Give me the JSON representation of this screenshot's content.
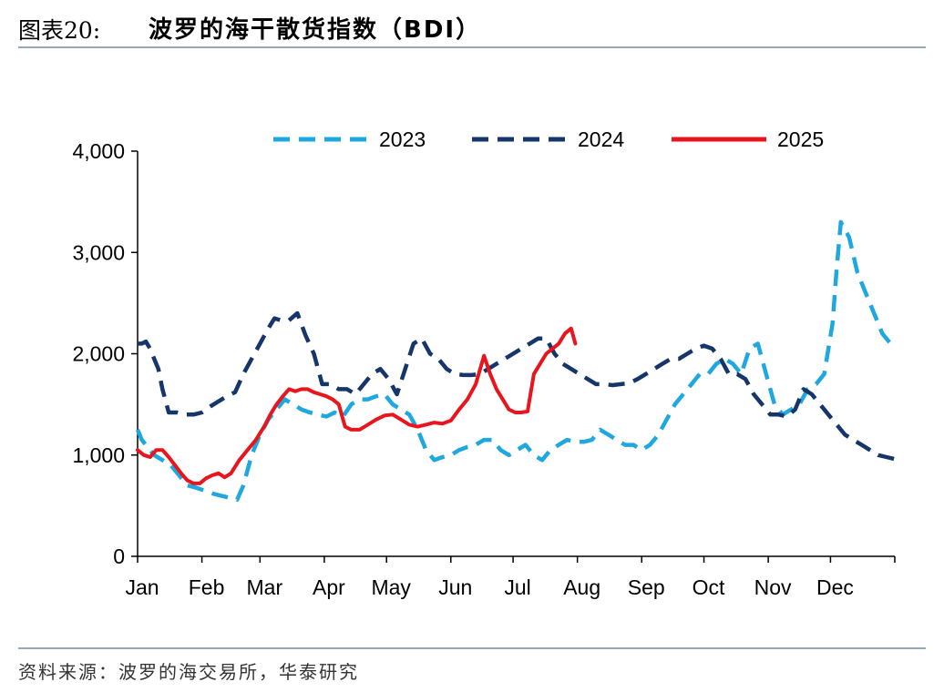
{
  "header": {
    "prefix": "图表20:",
    "title": "波罗的海干散货指数（BDI）"
  },
  "footer": {
    "source": "资料来源：波罗的海交易所，华泰研究"
  },
  "chart_data": {
    "type": "line",
    "title": "波罗的海干散货指数（BDI）",
    "xlabel": "",
    "ylabel": "",
    "x_unit": "day of year (1 = Jan 1)",
    "xlim": [
      1,
      366
    ],
    "ylim": [
      0,
      4000
    ],
    "yticks": [
      0,
      1000,
      2000,
      3000,
      4000
    ],
    "ytick_labels": [
      "0",
      "1,000",
      "2,000",
      "3,000",
      "4,000"
    ],
    "month_labels": [
      "Jan",
      "Feb",
      "Mar",
      "Apr",
      "May",
      "Jun",
      "Jul",
      "Aug",
      "Sep",
      "Oct",
      "Nov",
      "Dec"
    ],
    "month_starts": [
      1,
      32,
      60,
      91,
      121,
      152,
      182,
      213,
      244,
      274,
      305,
      335
    ],
    "grid": false,
    "legend_position": "top",
    "series": [
      {
        "name": "2023",
        "color": "#1fa8e0",
        "style": "dashed",
        "x": [
          1,
          3,
          5,
          9,
          13,
          17,
          21,
          25,
          29,
          33,
          37,
          41,
          45,
          49,
          52,
          56,
          60,
          64,
          68,
          72,
          76,
          80,
          84,
          88,
          92,
          96,
          100,
          104,
          108,
          112,
          116,
          120,
          124,
          128,
          132,
          136,
          140,
          144,
          148,
          152,
          156,
          160,
          164,
          168,
          172,
          176,
          180,
          184,
          188,
          192,
          196,
          200,
          204,
          208,
          212,
          216,
          220,
          224,
          228,
          232,
          236,
          240,
          244,
          248,
          252,
          256,
          260,
          264,
          268,
          272,
          276,
          280,
          284,
          288,
          292,
          296,
          300,
          304,
          308,
          312,
          316,
          320,
          324,
          328,
          332,
          336,
          338,
          340,
          344,
          348,
          352,
          356,
          360,
          364
        ],
        "y": [
          1250,
          1150,
          1100,
          1000,
          950,
          900,
          800,
          700,
          680,
          650,
          620,
          600,
          580,
          560,
          700,
          1000,
          1200,
          1350,
          1450,
          1550,
          1500,
          1450,
          1420,
          1400,
          1380,
          1420,
          1380,
          1500,
          1550,
          1550,
          1580,
          1600,
          1500,
          1450,
          1400,
          1250,
          1050,
          950,
          980,
          1000,
          1050,
          1080,
          1100,
          1150,
          1150,
          1050,
          1000,
          1050,
          1100,
          1000,
          950,
          1050,
          1100,
          1150,
          1130,
          1130,
          1150,
          1250,
          1200,
          1150,
          1100,
          1100,
          1050,
          1100,
          1200,
          1350,
          1500,
          1600,
          1700,
          1800,
          1800,
          1900,
          1950,
          1900,
          1800,
          2050,
          2100,
          1800,
          1500,
          1400,
          1450,
          1500,
          1650,
          1700,
          1800,
          2300,
          2850,
          3300,
          3150,
          2800,
          2600,
          2400,
          2200,
          2100
        ]
      },
      {
        "name": "2024",
        "color": "#16356b",
        "style": "dashed",
        "x": [
          1,
          3,
          5,
          7,
          9,
          11,
          13,
          16,
          20,
          24,
          28,
          32,
          36,
          40,
          44,
          48,
          52,
          56,
          60,
          64,
          67,
          70,
          74,
          78,
          82,
          86,
          90,
          94,
          98,
          102,
          106,
          110,
          114,
          118,
          122,
          126,
          130,
          134,
          138,
          142,
          146,
          150,
          154,
          158,
          162,
          166,
          170,
          174,
          178,
          182,
          186,
          190,
          194,
          198,
          202,
          206,
          210,
          214,
          218,
          222,
          226,
          230,
          234,
          238,
          242,
          246,
          250,
          254,
          258,
          262,
          266,
          270,
          274,
          278,
          282,
          286,
          290,
          294,
          298,
          302,
          306,
          310,
          314,
          318,
          322,
          326,
          330,
          334,
          338,
          342,
          346,
          350,
          354,
          358,
          362,
          366
        ],
        "y": [
          2100,
          2100,
          2120,
          2050,
          1950,
          1850,
          1650,
          1420,
          1420,
          1400,
          1400,
          1420,
          1480,
          1530,
          1580,
          1620,
          1800,
          1950,
          2100,
          2250,
          2350,
          2330,
          2330,
          2400,
          2180,
          2000,
          1700,
          1700,
          1650,
          1650,
          1600,
          1700,
          1800,
          1850,
          1750,
          1600,
          1850,
          2100,
          2150,
          2000,
          1950,
          1850,
          1800,
          1790,
          1790,
          1800,
          1850,
          1900,
          1950,
          2000,
          2050,
          2100,
          2150,
          2150,
          2000,
          1900,
          1850,
          1800,
          1750,
          1700,
          1700,
          1690,
          1700,
          1710,
          1750,
          1800,
          1850,
          1900,
          1950,
          1950,
          2000,
          2050,
          2080,
          2050,
          1950,
          1800,
          1800,
          1750,
          1600,
          1500,
          1400,
          1400,
          1380,
          1450,
          1650,
          1600,
          1500,
          1400,
          1300,
          1200,
          1150,
          1100,
          1050,
          1000,
          980,
          960
        ]
      },
      {
        "name": "2025",
        "color": "#e8161c",
        "style": "solid",
        "x": [
          1,
          4,
          7,
          10,
          13,
          16,
          19,
          22,
          25,
          28,
          31,
          34,
          37,
          40,
          43,
          46,
          50,
          54,
          58,
          62,
          65,
          68,
          71,
          74,
          77,
          80,
          83,
          86,
          89,
          92,
          95,
          98,
          101,
          104,
          108,
          112,
          116,
          120,
          124,
          128,
          132,
          136,
          140,
          144,
          148,
          152,
          156,
          160,
          164,
          168,
          171,
          174,
          177,
          180,
          183,
          186,
          189,
          192,
          195,
          198,
          201,
          204,
          207,
          210,
          212
        ],
        "y": [
          1050,
          1000,
          980,
          1050,
          1050,
          980,
          900,
          820,
          750,
          720,
          720,
          770,
          800,
          820,
          780,
          820,
          950,
          1050,
          1150,
          1280,
          1400,
          1500,
          1580,
          1650,
          1630,
          1650,
          1650,
          1620,
          1600,
          1580,
          1550,
          1500,
          1280,
          1250,
          1250,
          1300,
          1350,
          1390,
          1400,
          1350,
          1300,
          1280,
          1300,
          1320,
          1310,
          1340,
          1450,
          1550,
          1700,
          1980,
          1800,
          1650,
          1550,
          1450,
          1420,
          1420,
          1430,
          1800,
          1900,
          2000,
          2050,
          2100,
          2200,
          2250,
          2100
        ]
      }
    ]
  }
}
